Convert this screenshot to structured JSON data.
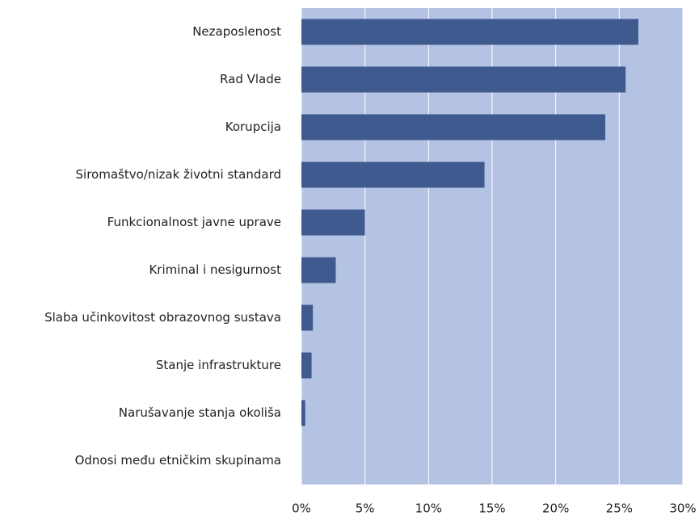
{
  "chart_data": {
    "type": "bar",
    "orientation": "horizontal",
    "categories": [
      "Nezaposlenost",
      "Rad Vlade",
      "Korupcija",
      "Siromaštvo/nizak životni standard",
      "Funkcionalnost javne uprave",
      "Kriminal i nesigurnost",
      "Slaba učinkovitost obrazovnog sustava",
      "Stanje infrastrukture",
      "Narušavanje stanja okoliša",
      "Odnosi među etničkim skupinama"
    ],
    "values": [
      26.5,
      25.5,
      23.9,
      14.4,
      5.0,
      2.7,
      0.9,
      0.8,
      0.3,
      0
    ],
    "color": "#3f5a8e",
    "plot_background": "#b4c3e3",
    "xlim": [
      0,
      30
    ],
    "xticks": [
      {
        "value": 0,
        "label": "0%"
      },
      {
        "value": 5,
        "label": "5%"
      },
      {
        "value": 10,
        "label": "10%"
      },
      {
        "value": 15,
        "label": "15%"
      },
      {
        "value": 20,
        "label": "20%"
      },
      {
        "value": 25,
        "label": "25%"
      },
      {
        "value": 30,
        "label": "30%"
      }
    ],
    "grid": true
  }
}
